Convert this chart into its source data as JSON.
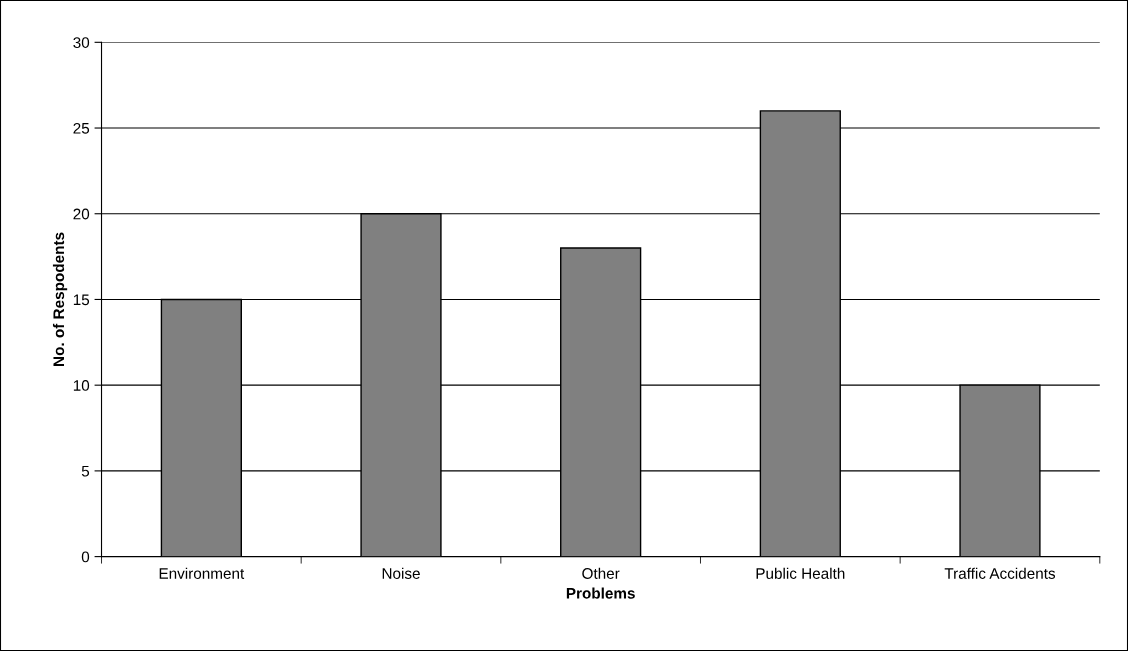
{
  "chart_data": {
    "type": "bar",
    "xlabel": "Problems",
    "ylabel": "No. of Respodents",
    "categories": [
      "Environment",
      "Noise",
      "Other",
      "Public Health",
      "Traffic Accidents"
    ],
    "values": [
      15,
      20,
      18,
      26,
      10
    ],
    "color": "#808080",
    "ylim": [
      0,
      30
    ],
    "yticks": [
      0,
      5,
      10,
      15,
      20,
      25,
      30
    ],
    "grid": "y",
    "legend": false
  }
}
